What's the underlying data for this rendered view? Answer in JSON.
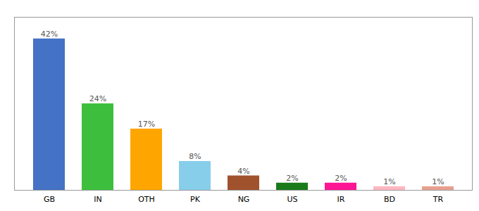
{
  "chart_data": {
    "type": "bar",
    "categories": [
      "GB",
      "IN",
      "OTH",
      "PK",
      "NG",
      "US",
      "IR",
      "BD",
      "TR"
    ],
    "values": [
      42,
      24,
      17,
      8,
      4,
      2,
      2,
      1,
      1
    ],
    "value_labels": [
      "42%",
      "24%",
      "17%",
      "8%",
      "4%",
      "2%",
      "2%",
      "1%",
      "1%"
    ],
    "colors": [
      "#4472C4",
      "#3DBF3D",
      "#FFA500",
      "#87CEEB",
      "#A0522D",
      "#1a7a1a",
      "#FF1493",
      "#FFB6C1",
      "#E8A090"
    ],
    "ylim": [
      0,
      48
    ],
    "yticks": [],
    "data_labels": true,
    "tick_labels": "x",
    "grid": false
  }
}
